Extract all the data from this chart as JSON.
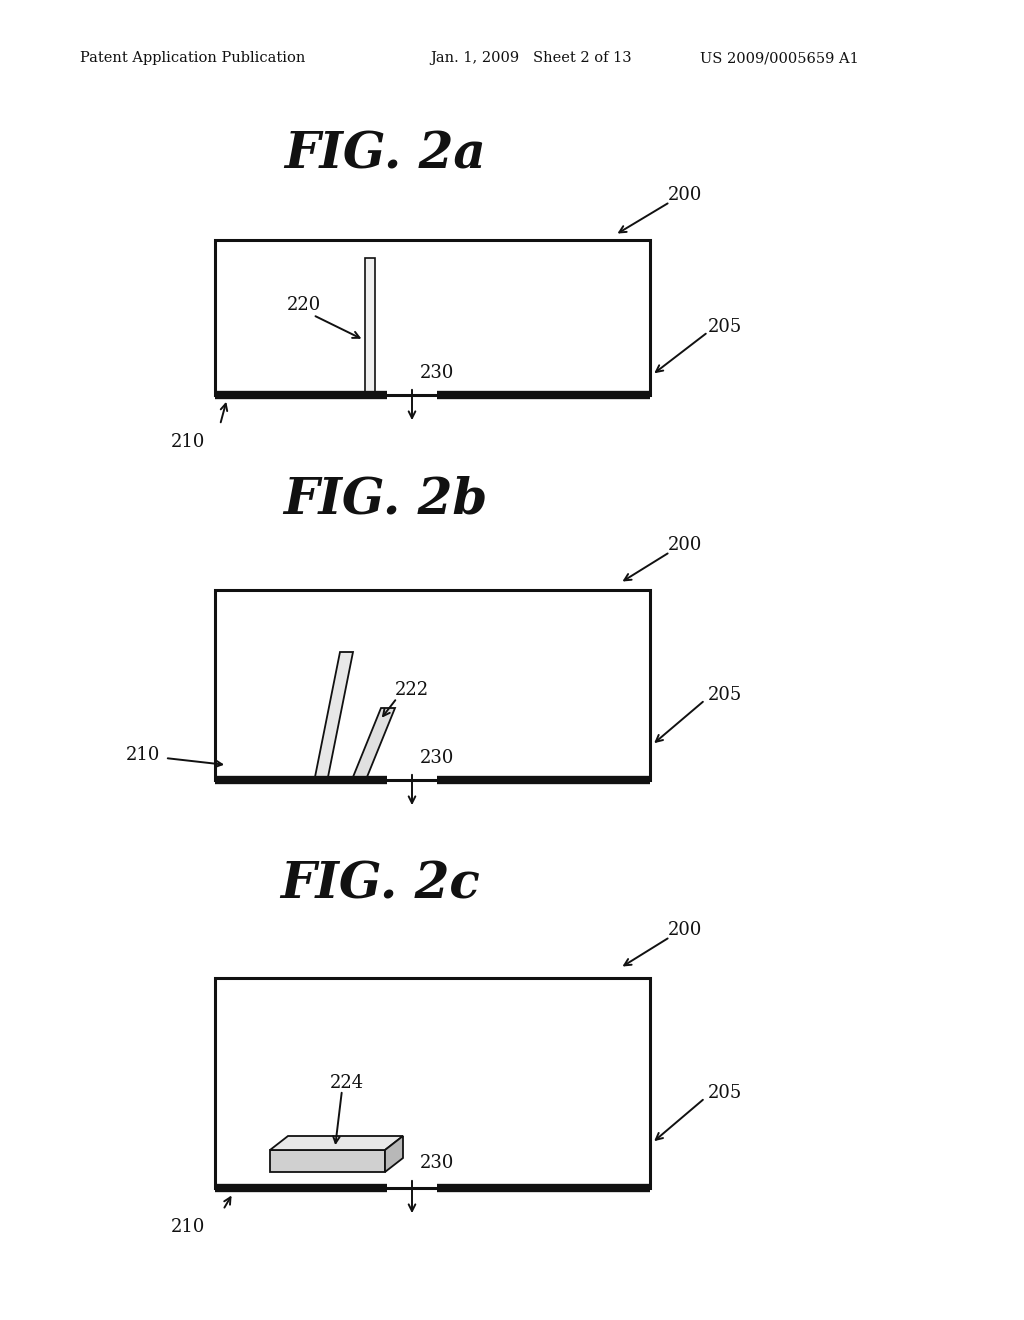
{
  "bg_color": "#ffffff",
  "header_left": "Patent Application Publication",
  "header_mid": "Jan. 1, 2009   Sheet 2 of 13",
  "header_right": "US 2009/0005659 A1",
  "fig2a_title": "FIG. 2a",
  "fig2b_title": "FIG. 2b",
  "fig2c_title": "FIG. 2c",
  "label_200": "200",
  "label_205": "205",
  "label_210": "210",
  "label_220": "220",
  "label_222": "222",
  "label_224": "224",
  "label_230": "230"
}
